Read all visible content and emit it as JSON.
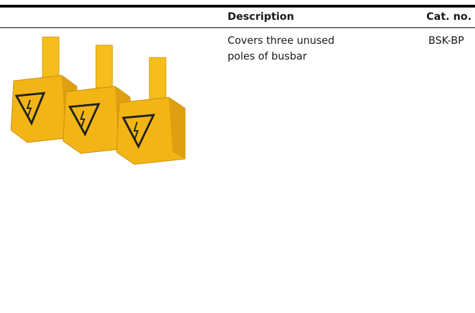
{
  "table": {
    "headers": [
      "Description",
      "Cat. no."
    ],
    "rows": [
      [
        "Covers three unused poles of busbar",
        "BSK-BP"
      ]
    ]
  }
}
